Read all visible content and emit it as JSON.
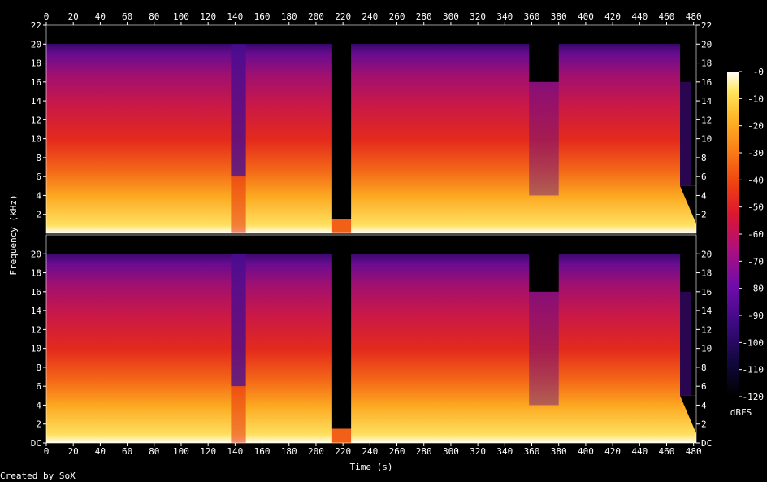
{
  "chart_data": {
    "type": "heatmap",
    "title": "",
    "xlabel": "Time (s)",
    "ylabel": "Frequency (kHz)",
    "xlim": [
      0,
      482
    ],
    "ylim": [
      0,
      22
    ],
    "x_ticks": [
      "0",
      "20",
      "40",
      "60",
      "80",
      "100",
      "120",
      "140",
      "160",
      "180",
      "200",
      "220",
      "240",
      "260",
      "280",
      "300",
      "320",
      "340",
      "360",
      "380",
      "400",
      "420",
      "440",
      "460",
      "480"
    ],
    "x_tick_values": [
      0,
      20,
      40,
      60,
      80,
      100,
      120,
      140,
      160,
      180,
      200,
      220,
      240,
      260,
      280,
      300,
      320,
      340,
      360,
      380,
      400,
      420,
      440,
      460,
      480
    ],
    "y_ticks_top": [
      "2",
      "4",
      "6",
      "8",
      "10",
      "12",
      "14",
      "16",
      "18",
      "20",
      "22"
    ],
    "y_ticks_bottom": [
      "DC",
      "2",
      "4",
      "6",
      "8",
      "10",
      "12",
      "14",
      "16",
      "18",
      "20"
    ],
    "y_tick_values_top": [
      2,
      4,
      6,
      8,
      10,
      12,
      14,
      16,
      18,
      20,
      22
    ],
    "y_tick_values_bottom": [
      0,
      2,
      4,
      6,
      8,
      10,
      12,
      14,
      16,
      18,
      20
    ],
    "channels": 2,
    "colorbar": {
      "label": "dBFS",
      "range": [
        -120,
        0
      ],
      "ticks": [
        "-0",
        "-10",
        "-20",
        "-30",
        "-40",
        "-50",
        "-60",
        "-70",
        "-80",
        "-90",
        "-100",
        "-110",
        "-120"
      ],
      "tick_values": [
        0,
        -10,
        -20,
        -30,
        -40,
        -50,
        -60,
        -70,
        -80,
        -90,
        -100,
        -110,
        -120
      ]
    },
    "features": [
      {
        "time_range": [
          0,
          470
        ],
        "lowpass_cutoff_khz": 20
      },
      {
        "time_range": [
          137,
          148
        ],
        "lowpass_cutoff_khz": 20,
        "note": "quieter section"
      },
      {
        "time_range": [
          212,
          226
        ],
        "level": "near silence"
      },
      {
        "time_range": [
          358,
          380
        ],
        "lowpass_cutoff_khz": 16
      },
      {
        "time_range": [
          470,
          482
        ],
        "level": "fade out"
      }
    ],
    "grid": false,
    "colors": {
      "background": "#000000",
      "colormap": [
        "#000000",
        "#1a0540",
        "#4a0c8c",
        "#8a10b0",
        "#c4125a",
        "#e4201a",
        "#f46010",
        "#fca020",
        "#fed040",
        "#ffff80",
        "#ffffff"
      ]
    }
  },
  "footer": {
    "credit": "Created by SoX"
  }
}
